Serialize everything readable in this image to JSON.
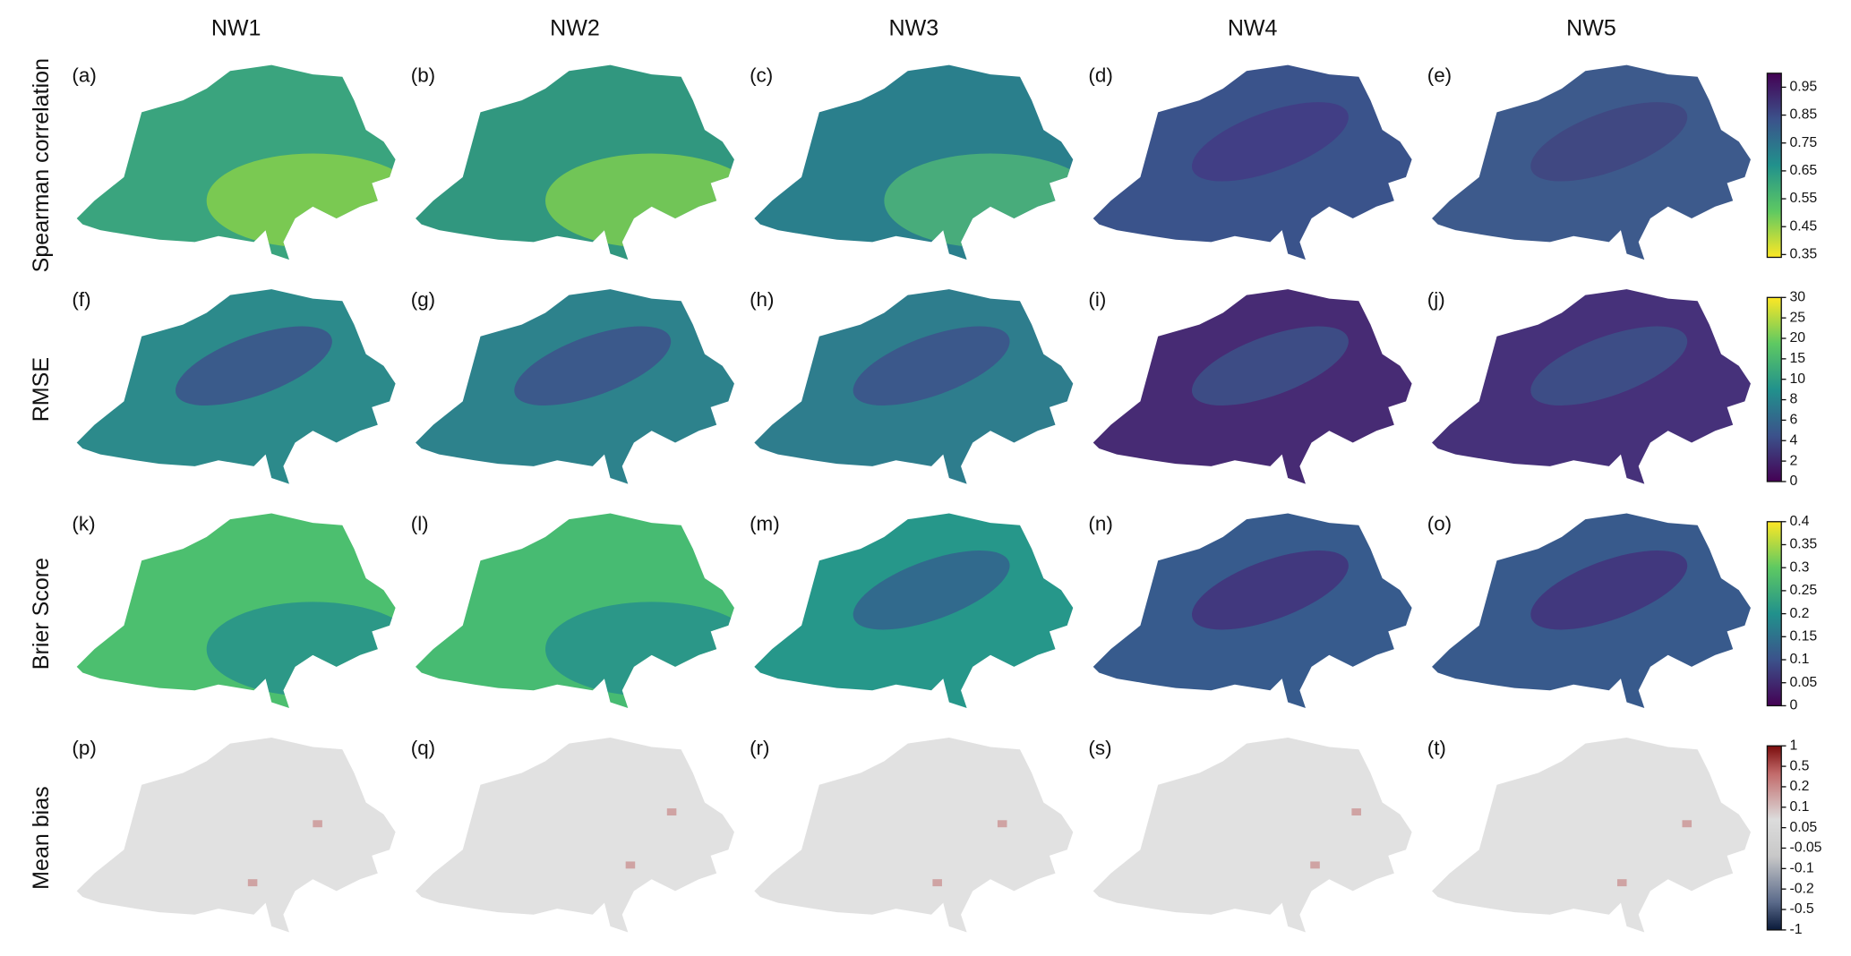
{
  "columns": [
    "NW1",
    "NW2",
    "NW3",
    "NW4",
    "NW5"
  ],
  "rows": [
    {
      "label": "Spearman correlation",
      "panels": [
        {
          "label": "(a)",
          "color": "#3aa47e",
          "accent": "#86d04a"
        },
        {
          "label": "(b)",
          "color": "#31977f",
          "accent": "#7ccd50"
        },
        {
          "label": "(c)",
          "color": "#2a7f8c",
          "accent": "#4db478"
        },
        {
          "label": "(d)",
          "color": "#3a538b",
          "accent": "#433a83"
        },
        {
          "label": "(e)",
          "color": "#3d5a8c",
          "accent": "#41437f"
        }
      ],
      "colorbar": {
        "colormap": "viridis_r",
        "scale": "linear",
        "lim": [
          0.34,
          1.0
        ],
        "ticks": [
          0.35,
          0.45,
          0.55,
          0.65,
          0.75,
          0.85,
          0.95
        ]
      }
    },
    {
      "label": "RMSE",
      "panels": [
        {
          "label": "(f)",
          "color": "#2c8a8b",
          "accent": "#3f4f8b"
        },
        {
          "label": "(g)",
          "color": "#2d828c",
          "accent": "#3f4f8b"
        },
        {
          "label": "(h)",
          "color": "#2e7d8d",
          "accent": "#3f4f8b"
        },
        {
          "label": "(i)",
          "color": "#472b74",
          "accent": "#3b5589"
        },
        {
          "label": "(j)",
          "color": "#46317a",
          "accent": "#3b5589"
        }
      ],
      "colorbar": {
        "colormap": "viridis",
        "scale": "class",
        "ticks": [
          0,
          2,
          4,
          6,
          8,
          10,
          15,
          20,
          25,
          30
        ]
      }
    },
    {
      "label": "Brier Score",
      "panels": [
        {
          "label": "(k)",
          "color": "#4cbf6f",
          "accent": "#27908c"
        },
        {
          "label": "(l)",
          "color": "#47bb72",
          "accent": "#27908c"
        },
        {
          "label": "(m)",
          "color": "#26978a",
          "accent": "#355f8d"
        },
        {
          "label": "(n)",
          "color": "#375b8d",
          "accent": "#44307b"
        },
        {
          "label": "(o)",
          "color": "#385a8c",
          "accent": "#44307b"
        }
      ],
      "colorbar": {
        "colormap": "viridis",
        "scale": "linear",
        "lim": [
          0,
          0.4
        ],
        "ticks": [
          0,
          0.05,
          0.1,
          0.15,
          0.2,
          0.25,
          0.3,
          0.35,
          0.4
        ]
      }
    },
    {
      "label": "Mean bias",
      "panels": [
        {
          "label": "(p)",
          "color": "#e1e1e1",
          "accent": "#cfa3a3"
        },
        {
          "label": "(q)",
          "color": "#e1e1e1",
          "accent": "#cfa3a3"
        },
        {
          "label": "(r)",
          "color": "#e1e1e1",
          "accent": "#cfa3a3"
        },
        {
          "label": "(s)",
          "color": "#e1e1e1",
          "accent": "#cfa3a3"
        },
        {
          "label": "(t)",
          "color": "#e1e1e1",
          "accent": "#cfa3a3"
        }
      ],
      "colorbar": {
        "colormap": "diverging",
        "scale": "class",
        "ticks": [
          -1,
          -0.5,
          -0.2,
          -0.1,
          -0.05,
          0.05,
          0.1,
          0.2,
          0.5,
          1
        ]
      }
    }
  ]
}
